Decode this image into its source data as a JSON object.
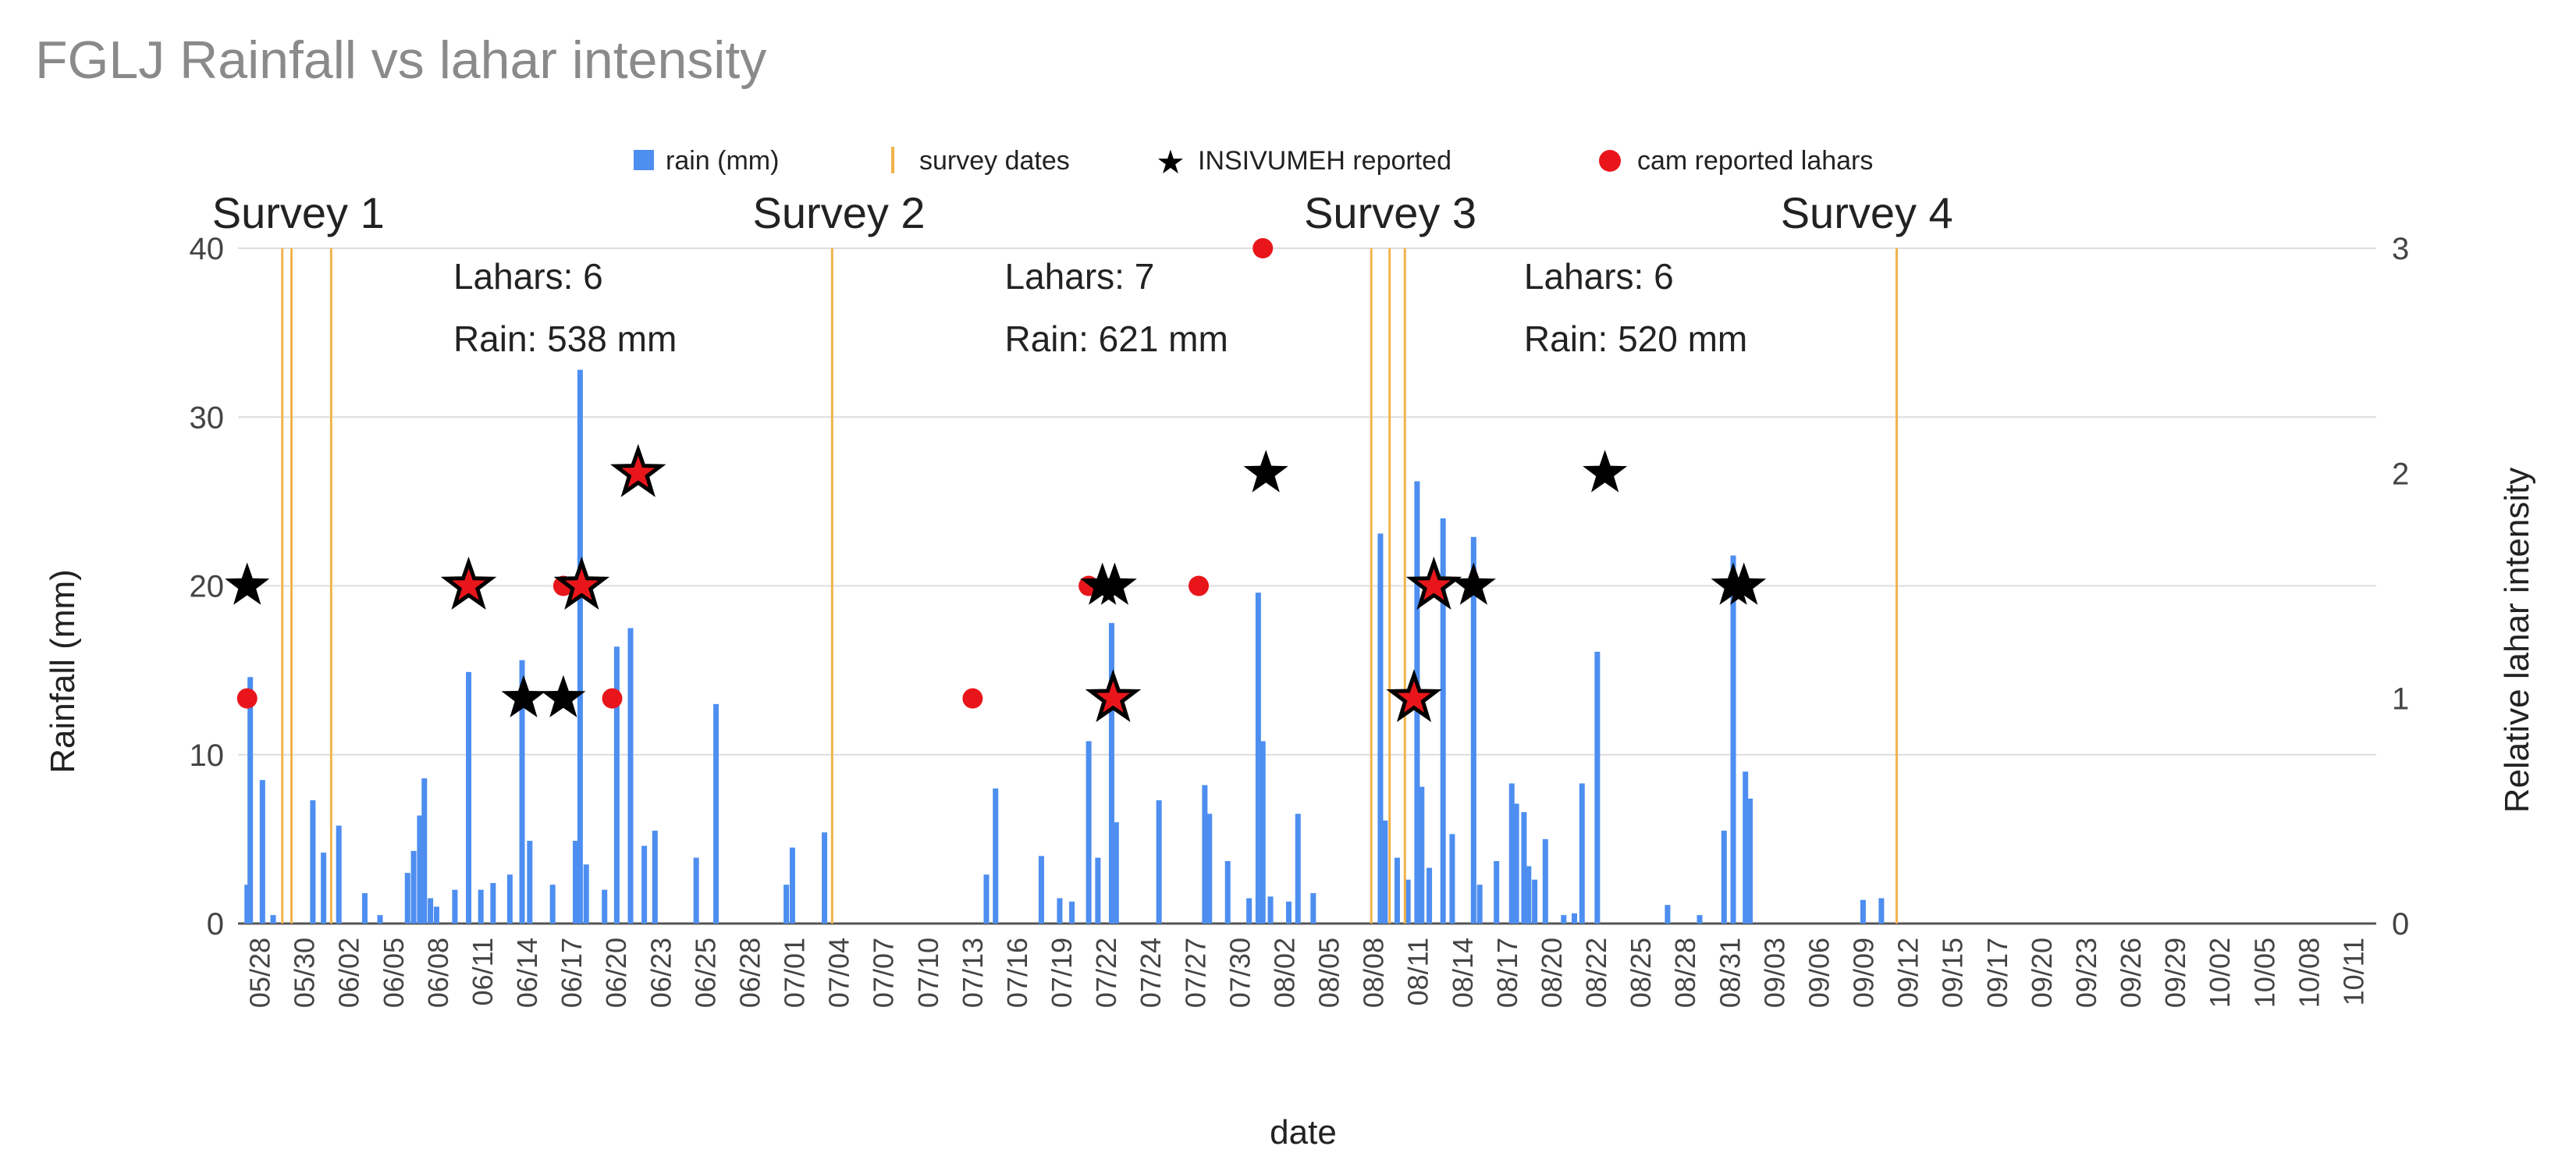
{
  "chart_data": {
    "type": "bar",
    "title": "FGLJ Rainfall vs lahar intensity",
    "xlabel": "date",
    "ylabel": "Rainfall (mm)",
    "y2label": "Relative lahar intensity",
    "ylim": [
      0,
      40
    ],
    "y2lim": [
      0,
      3
    ],
    "yticks": [
      0,
      10,
      20,
      30,
      40
    ],
    "y2ticks": [
      0,
      1,
      2,
      3
    ],
    "grid": true,
    "legend_position": "top",
    "legend": [
      {
        "label": "rain (mm)",
        "color": "#4d8ef0"
      },
      {
        "label": "survey dates",
        "color": "#f2b34a"
      },
      {
        "label": "INSIVUMEH reported",
        "color": "#000000"
      },
      {
        "label": "cam reported lahars",
        "color": "#e8161b"
      }
    ],
    "x_start": "05/28",
    "x_end_day": 140,
    "xtick_labels": [
      "05/28",
      "05/30",
      "06/02",
      "06/05",
      "06/08",
      "06/11",
      "06/14",
      "06/17",
      "06/20",
      "06/23",
      "06/25",
      "06/28",
      "07/01",
      "07/04",
      "07/07",
      "07/10",
      "07/13",
      "07/16",
      "07/19",
      "07/22",
      "07/24",
      "07/27",
      "07/30",
      "08/02",
      "08/05",
      "08/08",
      "08/11",
      "08/14",
      "08/17",
      "08/20",
      "08/22",
      "08/25",
      "08/28",
      "08/31",
      "09/03",
      "09/06",
      "09/09",
      "09/12",
      "09/15",
      "09/17",
      "09/20",
      "09/23",
      "09/26",
      "09/29",
      "10/02",
      "10/05",
      "10/08",
      "10/11"
    ],
    "rain_series_name": "rain (mm)",
    "rain": [
      {
        "day": 0.6,
        "mm": 2.3
      },
      {
        "day": 0.8,
        "mm": 14.6
      },
      {
        "day": 1.6,
        "mm": 8.5
      },
      {
        "day": 2.3,
        "mm": 0.5
      },
      {
        "day": 4.9,
        "mm": 7.3
      },
      {
        "day": 5.6,
        "mm": 4.2
      },
      {
        "day": 6.6,
        "mm": 5.8
      },
      {
        "day": 8.3,
        "mm": 1.8
      },
      {
        "day": 9.3,
        "mm": 0.5
      },
      {
        "day": 11.1,
        "mm": 3.0
      },
      {
        "day": 11.5,
        "mm": 4.3
      },
      {
        "day": 11.9,
        "mm": 6.4
      },
      {
        "day": 12.2,
        "mm": 8.6
      },
      {
        "day": 12.6,
        "mm": 1.5
      },
      {
        "day": 13.0,
        "mm": 1.0
      },
      {
        "day": 14.2,
        "mm": 2.0
      },
      {
        "day": 15.1,
        "mm": 14.9
      },
      {
        "day": 15.9,
        "mm": 2.0
      },
      {
        "day": 16.7,
        "mm": 2.4
      },
      {
        "day": 17.8,
        "mm": 2.9
      },
      {
        "day": 18.6,
        "mm": 15.6
      },
      {
        "day": 19.1,
        "mm": 4.9
      },
      {
        "day": 20.6,
        "mm": 2.3
      },
      {
        "day": 22.1,
        "mm": 4.9
      },
      {
        "day": 22.4,
        "mm": 32.8
      },
      {
        "day": 22.8,
        "mm": 3.5
      },
      {
        "day": 24.0,
        "mm": 2.0
      },
      {
        "day": 24.8,
        "mm": 16.4
      },
      {
        "day": 25.7,
        "mm": 17.5
      },
      {
        "day": 26.6,
        "mm": 4.6
      },
      {
        "day": 27.3,
        "mm": 5.5
      },
      {
        "day": 30.0,
        "mm": 3.9
      },
      {
        "day": 31.3,
        "mm": 13.0
      },
      {
        "day": 35.9,
        "mm": 2.3
      },
      {
        "day": 36.3,
        "mm": 4.5
      },
      {
        "day": 38.4,
        "mm": 5.4
      },
      {
        "day": 49.0,
        "mm": 2.9
      },
      {
        "day": 49.6,
        "mm": 8.0
      },
      {
        "day": 52.6,
        "mm": 4.0
      },
      {
        "day": 53.8,
        "mm": 1.5
      },
      {
        "day": 54.6,
        "mm": 1.3
      },
      {
        "day": 55.7,
        "mm": 10.8
      },
      {
        "day": 56.3,
        "mm": 3.9
      },
      {
        "day": 57.2,
        "mm": 17.8
      },
      {
        "day": 57.5,
        "mm": 6.0
      },
      {
        "day": 60.3,
        "mm": 7.3
      },
      {
        "day": 63.3,
        "mm": 8.2
      },
      {
        "day": 63.6,
        "mm": 6.5
      },
      {
        "day": 64.8,
        "mm": 3.7
      },
      {
        "day": 66.2,
        "mm": 1.5
      },
      {
        "day": 66.8,
        "mm": 19.6
      },
      {
        "day": 67.1,
        "mm": 10.8
      },
      {
        "day": 67.6,
        "mm": 1.6
      },
      {
        "day": 68.8,
        "mm": 1.3
      },
      {
        "day": 69.4,
        "mm": 6.5
      },
      {
        "day": 70.4,
        "mm": 1.8
      },
      {
        "day": 74.8,
        "mm": 23.1
      },
      {
        "day": 75.1,
        "mm": 6.1
      },
      {
        "day": 75.9,
        "mm": 3.9
      },
      {
        "day": 76.6,
        "mm": 2.6
      },
      {
        "day": 77.2,
        "mm": 26.2
      },
      {
        "day": 77.5,
        "mm": 8.1
      },
      {
        "day": 78.0,
        "mm": 3.3
      },
      {
        "day": 78.9,
        "mm": 24.0
      },
      {
        "day": 79.5,
        "mm": 5.3
      },
      {
        "day": 80.9,
        "mm": 22.9
      },
      {
        "day": 81.3,
        "mm": 2.3
      },
      {
        "day": 82.4,
        "mm": 3.7
      },
      {
        "day": 83.4,
        "mm": 8.3
      },
      {
        "day": 83.7,
        "mm": 7.1
      },
      {
        "day": 84.2,
        "mm": 6.6
      },
      {
        "day": 84.5,
        "mm": 3.4
      },
      {
        "day": 84.9,
        "mm": 2.6
      },
      {
        "day": 85.6,
        "mm": 5.0
      },
      {
        "day": 86.8,
        "mm": 0.5
      },
      {
        "day": 87.5,
        "mm": 0.6
      },
      {
        "day": 88.0,
        "mm": 8.3
      },
      {
        "day": 89.0,
        "mm": 16.1
      },
      {
        "day": 93.6,
        "mm": 1.1
      },
      {
        "day": 95.7,
        "mm": 0.5
      },
      {
        "day": 97.3,
        "mm": 5.5
      },
      {
        "day": 97.9,
        "mm": 21.8
      },
      {
        "day": 98.7,
        "mm": 9.0
      },
      {
        "day": 99.0,
        "mm": 7.4
      },
      {
        "day": 106.4,
        "mm": 1.4
      },
      {
        "day": 107.6,
        "mm": 1.5
      }
    ],
    "survey_dates_days": [
      2.9,
      3.5,
      6.1,
      38.9,
      74.2,
      75.4,
      76.4,
      108.6
    ],
    "insivumeh_series_name": "INSIVUMEH reported",
    "insivumeh": [
      {
        "day": 0.6,
        "intensity": 1.5
      },
      {
        "day": 15.1,
        "intensity": 1.5
      },
      {
        "day": 18.7,
        "intensity": 1.0
      },
      {
        "day": 21.3,
        "intensity": 1.0
      },
      {
        "day": 22.5,
        "intensity": 1.5
      },
      {
        "day": 26.2,
        "intensity": 2.0
      },
      {
        "day": 56.6,
        "intensity": 1.5
      },
      {
        "day": 57.4,
        "intensity": 1.5
      },
      {
        "day": 57.3,
        "intensity": 1.0
      },
      {
        "day": 67.3,
        "intensity": 2.0
      },
      {
        "day": 77.0,
        "intensity": 1.0
      },
      {
        "day": 78.3,
        "intensity": 1.5
      },
      {
        "day": 80.9,
        "intensity": 1.5
      },
      {
        "day": 89.5,
        "intensity": 2.0
      },
      {
        "day": 97.9,
        "intensity": 1.5
      },
      {
        "day": 98.6,
        "intensity": 1.5
      }
    ],
    "cam_series_name": "cam reported lahars",
    "cam": [
      {
        "day": 0.6,
        "intensity": 1.0
      },
      {
        "day": 15.1,
        "intensity": 1.5
      },
      {
        "day": 21.3,
        "intensity": 1.5
      },
      {
        "day": 22.3,
        "intensity": 1.5
      },
      {
        "day": 24.5,
        "intensity": 1.0
      },
      {
        "day": 26.2,
        "intensity": 2.0
      },
      {
        "day": 48.1,
        "intensity": 1.0
      },
      {
        "day": 55.7,
        "intensity": 1.5
      },
      {
        "day": 57.3,
        "intensity": 1.0
      },
      {
        "day": 62.9,
        "intensity": 1.5
      },
      {
        "day": 67.1,
        "intensity": 3.0
      },
      {
        "day": 77.0,
        "intensity": 1.0
      },
      {
        "day": 78.4,
        "intensity": 1.5
      }
    ],
    "annotations": [
      {
        "text": "Survey 1",
        "day": -1.7,
        "mm": 41.2,
        "size": 56
      },
      {
        "text": "Survey 2",
        "day": 33.7,
        "mm": 41.2,
        "size": 56
      },
      {
        "text": "Survey 3",
        "day": 69.8,
        "mm": 41.2,
        "size": 56
      },
      {
        "text": "Survey 4",
        "day": 101.0,
        "mm": 41.2,
        "size": 56
      },
      {
        "text": "Lahars: 6",
        "day": 14.1,
        "mm": 37.6,
        "size": 46
      },
      {
        "text": "Rain: 538 mm",
        "day": 14.1,
        "mm": 33.9,
        "size": 46
      },
      {
        "text": "Lahars: 7",
        "day": 50.2,
        "mm": 37.6,
        "size": 46
      },
      {
        "text": "Rain: 621 mm",
        "day": 50.2,
        "mm": 33.9,
        "size": 46
      },
      {
        "text": "Lahars: 6",
        "day": 84.2,
        "mm": 37.6,
        "size": 46
      },
      {
        "text": "Rain: 520 mm",
        "day": 84.2,
        "mm": 33.9,
        "size": 46
      }
    ]
  }
}
